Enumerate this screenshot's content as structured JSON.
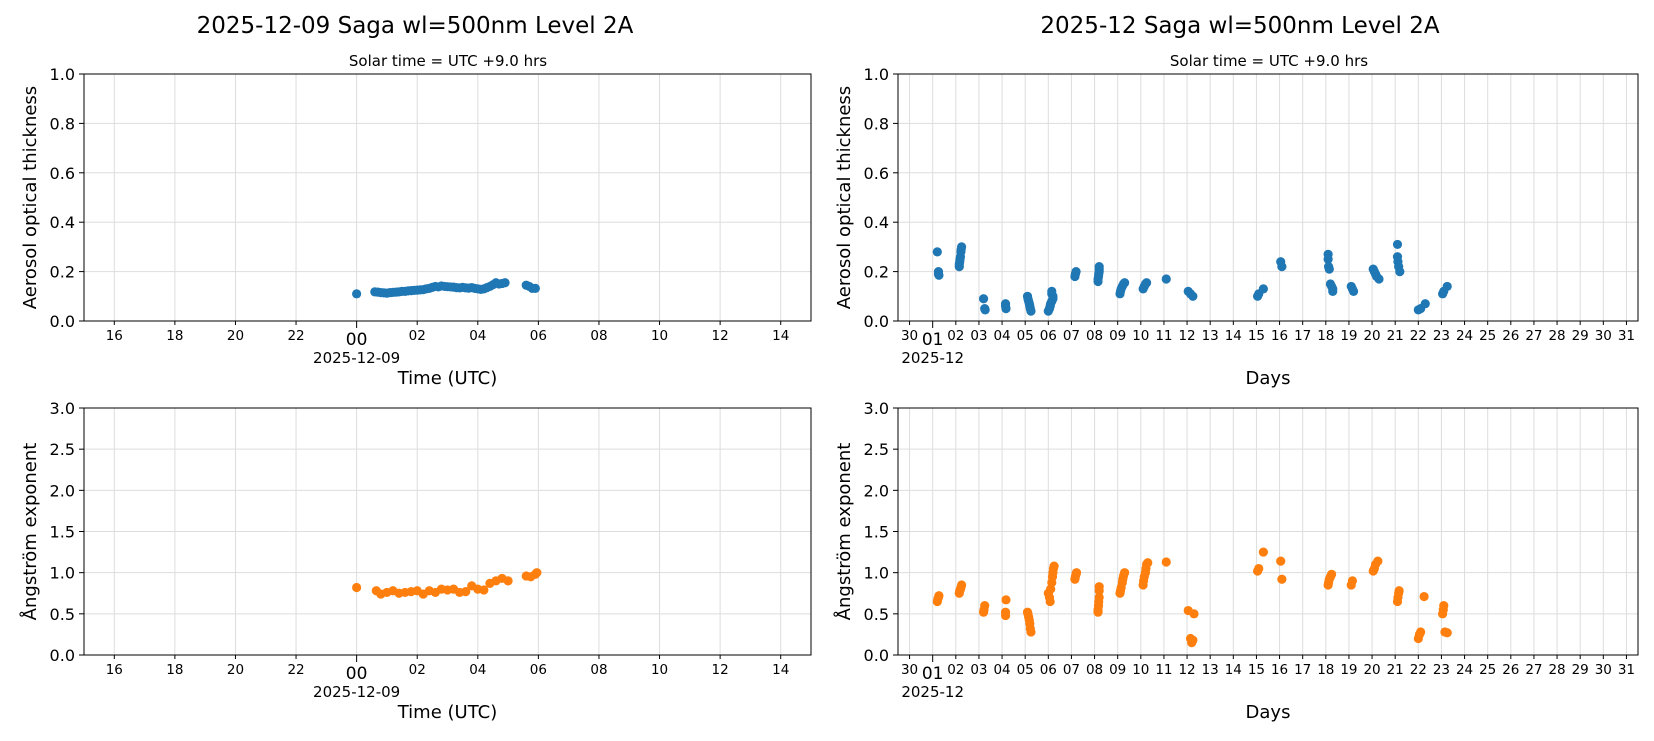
{
  "chart_data": [
    {
      "type": "scatter",
      "title": "2025-12-09  Saga  wl=500nm  Level 2A",
      "subtitle": "Solar time = UTC +9.0 hrs",
      "xlabel": "Time (UTC)",
      "ylabel": "Aerosol optical thickness",
      "x_tick_labels": [
        "16",
        "18",
        "20",
        "22",
        "00",
        "02",
        "04",
        "06",
        "08",
        "10",
        "12",
        "14"
      ],
      "x_major_label": "2025-12-09",
      "xlim": [
        "2025-12-08 15:00",
        "2025-12-09 15:00"
      ],
      "ylim": [
        0,
        1.0
      ],
      "y_ticks": [
        "0.0",
        "0.2",
        "0.4",
        "0.6",
        "0.8",
        "1.0"
      ],
      "grid": true,
      "color": "#1f77b4",
      "points": [
        [
          "00:00",
          0.11
        ],
        [
          "00:36",
          0.118
        ],
        [
          "00:42",
          0.117
        ],
        [
          "00:48",
          0.115
        ],
        [
          "00:54",
          0.114
        ],
        [
          "01:00",
          0.113
        ],
        [
          "01:06",
          0.115
        ],
        [
          "01:12",
          0.116
        ],
        [
          "01:18",
          0.117
        ],
        [
          "01:24",
          0.118
        ],
        [
          "01:30",
          0.12
        ],
        [
          "01:36",
          0.12
        ],
        [
          "01:42",
          0.122
        ],
        [
          "01:48",
          0.123
        ],
        [
          "01:54",
          0.124
        ],
        [
          "02:00",
          0.125
        ],
        [
          "02:06",
          0.126
        ],
        [
          "02:12",
          0.127
        ],
        [
          "02:18",
          0.13
        ],
        [
          "02:24",
          0.132
        ],
        [
          "02:30",
          0.136
        ],
        [
          "02:36",
          0.14
        ],
        [
          "02:42",
          0.138
        ],
        [
          "02:48",
          0.142
        ],
        [
          "02:54",
          0.14
        ],
        [
          "03:00",
          0.139
        ],
        [
          "03:06",
          0.138
        ],
        [
          "03:12",
          0.137
        ],
        [
          "03:18",
          0.135
        ],
        [
          "03:24",
          0.134
        ],
        [
          "03:30",
          0.136
        ],
        [
          "03:36",
          0.134
        ],
        [
          "03:42",
          0.133
        ],
        [
          "03:48",
          0.135
        ],
        [
          "03:54",
          0.132
        ],
        [
          "04:00",
          0.13
        ],
        [
          "04:06",
          0.128
        ],
        [
          "04:12",
          0.13
        ],
        [
          "04:18",
          0.135
        ],
        [
          "04:24",
          0.14
        ],
        [
          "04:30",
          0.147
        ],
        [
          "04:36",
          0.155
        ],
        [
          "04:42",
          0.15
        ],
        [
          "04:48",
          0.152
        ],
        [
          "04:54",
          0.155
        ],
        [
          "05:36",
          0.145
        ],
        [
          "05:42",
          0.14
        ],
        [
          "05:48",
          0.132
        ],
        [
          "05:54",
          0.132
        ]
      ]
    },
    {
      "type": "scatter",
      "title": "2025-12  Saga  wl=500nm  Level 2A",
      "subtitle": "Solar time = UTC +9.0 hrs",
      "xlabel": "Days",
      "ylabel": "Aerosol optical thickness",
      "x_tick_labels": [
        "30",
        "01",
        "02",
        "03",
        "04",
        "05",
        "06",
        "07",
        "08",
        "09",
        "10",
        "11",
        "12",
        "13",
        "14",
        "15",
        "16",
        "17",
        "18",
        "19",
        "20",
        "21",
        "22",
        "23",
        "24",
        "25",
        "26",
        "27",
        "28",
        "29",
        "30",
        "31"
      ],
      "x_major_label": "2025-12",
      "ylim": [
        0,
        1.0
      ],
      "y_ticks": [
        "0.0",
        "0.2",
        "0.4",
        "0.6",
        "0.8",
        "1.0"
      ],
      "grid": true,
      "color": "#1f77b4",
      "points": [
        [
          1.2,
          0.28
        ],
        [
          1.25,
          0.2
        ],
        [
          1.25,
          0.19
        ],
        [
          1.27,
          0.185
        ],
        [
          2.15,
          0.22
        ],
        [
          2.15,
          0.23
        ],
        [
          2.17,
          0.24
        ],
        [
          2.18,
          0.25
        ],
        [
          2.2,
          0.26
        ],
        [
          2.22,
          0.28
        ],
        [
          2.23,
          0.29
        ],
        [
          2.25,
          0.3
        ],
        [
          3.2,
          0.09
        ],
        [
          3.25,
          0.05
        ],
        [
          3.27,
          0.045
        ],
        [
          4.15,
          0.07
        ],
        [
          4.15,
          0.06
        ],
        [
          4.17,
          0.05
        ],
        [
          5.1,
          0.1
        ],
        [
          5.12,
          0.09
        ],
        [
          5.15,
          0.08
        ],
        [
          5.18,
          0.07
        ],
        [
          5.2,
          0.06
        ],
        [
          5.22,
          0.05
        ],
        [
          5.25,
          0.04
        ],
        [
          6.0,
          0.04
        ],
        [
          6.05,
          0.05
        ],
        [
          6.08,
          0.06
        ],
        [
          6.1,
          0.07
        ],
        [
          6.15,
          0.08
        ],
        [
          6.2,
          0.09
        ],
        [
          6.2,
          0.1
        ],
        [
          6.15,
          0.11
        ],
        [
          6.15,
          0.12
        ],
        [
          7.15,
          0.18
        ],
        [
          7.17,
          0.19
        ],
        [
          7.2,
          0.2
        ],
        [
          8.15,
          0.16
        ],
        [
          8.15,
          0.17
        ],
        [
          8.17,
          0.18
        ],
        [
          8.18,
          0.19
        ],
        [
          8.2,
          0.2
        ],
        [
          8.2,
          0.21
        ],
        [
          8.2,
          0.22
        ],
        [
          9.1,
          0.11
        ],
        [
          9.12,
          0.12
        ],
        [
          9.15,
          0.13
        ],
        [
          9.2,
          0.14
        ],
        [
          9.25,
          0.15
        ],
        [
          9.3,
          0.155
        ],
        [
          10.1,
          0.13
        ],
        [
          10.15,
          0.14
        ],
        [
          10.2,
          0.15
        ],
        [
          10.25,
          0.155
        ],
        [
          11.1,
          0.17
        ],
        [
          12.05,
          0.12
        ],
        [
          12.15,
          0.11
        ],
        [
          12.25,
          0.1
        ],
        [
          15.05,
          0.1
        ],
        [
          15.1,
          0.11
        ],
        [
          15.3,
          0.13
        ],
        [
          16.05,
          0.24
        ],
        [
          16.1,
          0.22
        ],
        [
          18.1,
          0.27
        ],
        [
          18.1,
          0.25
        ],
        [
          18.12,
          0.22
        ],
        [
          18.15,
          0.21
        ],
        [
          18.2,
          0.15
        ],
        [
          18.25,
          0.14
        ],
        [
          18.3,
          0.13
        ],
        [
          18.3,
          0.12
        ],
        [
          19.1,
          0.14
        ],
        [
          19.15,
          0.13
        ],
        [
          19.2,
          0.12
        ],
        [
          20.05,
          0.21
        ],
        [
          20.1,
          0.2
        ],
        [
          20.15,
          0.19
        ],
        [
          20.2,
          0.18
        ],
        [
          20.3,
          0.17
        ],
        [
          21.1,
          0.31
        ],
        [
          21.1,
          0.26
        ],
        [
          21.12,
          0.24
        ],
        [
          21.15,
          0.22
        ],
        [
          21.2,
          0.2
        ],
        [
          22.0,
          0.045
        ],
        [
          22.1,
          0.05
        ],
        [
          22.3,
          0.07
        ],
        [
          23.05,
          0.11
        ],
        [
          23.1,
          0.12
        ],
        [
          23.25,
          0.14
        ]
      ]
    },
    {
      "type": "scatter",
      "xlabel": "Time (UTC)",
      "ylabel": "Ångström exponent",
      "x_tick_labels": [
        "16",
        "18",
        "20",
        "22",
        "00",
        "02",
        "04",
        "06",
        "08",
        "10",
        "12",
        "14"
      ],
      "x_major_label": "2025-12-09",
      "xlim": [
        "2025-12-08 15:00",
        "2025-12-09 15:00"
      ],
      "ylim": [
        0,
        3.0
      ],
      "y_ticks": [
        "0.0",
        "0.5",
        "1.0",
        "1.5",
        "2.0",
        "2.5",
        "3.0"
      ],
      "grid": true,
      "color": "#ff7f0e",
      "points": [
        [
          "00:00",
          0.82
        ],
        [
          "00:39",
          0.78
        ],
        [
          "00:48",
          0.74
        ],
        [
          "01:00",
          0.76
        ],
        [
          "01:12",
          0.78
        ],
        [
          "01:24",
          0.75
        ],
        [
          "01:36",
          0.76
        ],
        [
          "01:48",
          0.77
        ],
        [
          "02:00",
          0.78
        ],
        [
          "02:12",
          0.74
        ],
        [
          "02:24",
          0.78
        ],
        [
          "02:36",
          0.76
        ],
        [
          "02:48",
          0.8
        ],
        [
          "03:00",
          0.79
        ],
        [
          "03:12",
          0.8
        ],
        [
          "03:24",
          0.76
        ],
        [
          "03:36",
          0.77
        ],
        [
          "03:48",
          0.84
        ],
        [
          "04:00",
          0.8
        ],
        [
          "04:12",
          0.79
        ],
        [
          "04:24",
          0.87
        ],
        [
          "04:36",
          0.9
        ],
        [
          "04:48",
          0.93
        ],
        [
          "05:00",
          0.9
        ],
        [
          "05:36",
          0.96
        ],
        [
          "05:45",
          0.95
        ],
        [
          "05:54",
          0.98
        ],
        [
          "05:57",
          1.0
        ]
      ]
    },
    {
      "type": "scatter",
      "xlabel": "Days",
      "ylabel": "Ångström exponent",
      "x_tick_labels": [
        "30",
        "01",
        "02",
        "03",
        "04",
        "05",
        "06",
        "07",
        "08",
        "09",
        "10",
        "11",
        "12",
        "13",
        "14",
        "15",
        "16",
        "17",
        "18",
        "19",
        "20",
        "21",
        "22",
        "23",
        "24",
        "25",
        "26",
        "27",
        "28",
        "29",
        "30",
        "31"
      ],
      "x_major_label": "2025-12",
      "ylim": [
        0,
        3.0
      ],
      "y_ticks": [
        "0.0",
        "0.5",
        "1.0",
        "1.5",
        "2.0",
        "2.5",
        "3.0"
      ],
      "grid": true,
      "color": "#ff7f0e",
      "points": [
        [
          1.2,
          0.65
        ],
        [
          1.22,
          0.68
        ],
        [
          1.25,
          0.7
        ],
        [
          1.27,
          0.72
        ],
        [
          2.15,
          0.75
        ],
        [
          2.17,
          0.78
        ],
        [
          2.2,
          0.8
        ],
        [
          2.22,
          0.82
        ],
        [
          2.25,
          0.85
        ],
        [
          3.2,
          0.52
        ],
        [
          3.22,
          0.55
        ],
        [
          3.25,
          0.6
        ],
        [
          4.15,
          0.48
        ],
        [
          4.15,
          0.52
        ],
        [
          4.17,
          0.67
        ],
        [
          5.1,
          0.52
        ],
        [
          5.12,
          0.5
        ],
        [
          5.15,
          0.46
        ],
        [
          5.18,
          0.42
        ],
        [
          5.2,
          0.38
        ],
        [
          5.22,
          0.32
        ],
        [
          5.25,
          0.28
        ],
        [
          6.0,
          0.75
        ],
        [
          6.05,
          0.7
        ],
        [
          6.08,
          0.65
        ],
        [
          6.1,
          0.8
        ],
        [
          6.15,
          0.88
        ],
        [
          6.18,
          0.95
        ],
        [
          6.2,
          1.0
        ],
        [
          6.22,
          1.05
        ],
        [
          6.25,
          1.08
        ],
        [
          7.15,
          0.92
        ],
        [
          7.17,
          0.95
        ],
        [
          7.2,
          0.98
        ],
        [
          7.22,
          1.0
        ],
        [
          8.15,
          0.52
        ],
        [
          8.15,
          0.55
        ],
        [
          8.17,
          0.6
        ],
        [
          8.18,
          0.65
        ],
        [
          8.2,
          0.7
        ],
        [
          8.2,
          0.78
        ],
        [
          8.2,
          0.83
        ],
        [
          9.1,
          0.75
        ],
        [
          9.12,
          0.78
        ],
        [
          9.15,
          0.82
        ],
        [
          9.2,
          0.88
        ],
        [
          9.22,
          0.92
        ],
        [
          9.25,
          0.96
        ],
        [
          9.3,
          1.0
        ],
        [
          10.1,
          0.85
        ],
        [
          10.12,
          0.9
        ],
        [
          10.15,
          0.95
        ],
        [
          10.2,
          1.0
        ],
        [
          10.22,
          1.05
        ],
        [
          10.25,
          1.1
        ],
        [
          10.3,
          1.12
        ],
        [
          11.1,
          1.13
        ],
        [
          12.05,
          0.54
        ],
        [
          12.3,
          0.5
        ],
        [
          12.15,
          0.2
        ],
        [
          12.2,
          0.15
        ],
        [
          12.25,
          0.18
        ],
        [
          15.05,
          1.02
        ],
        [
          15.1,
          1.05
        ],
        [
          15.3,
          1.25
        ],
        [
          16.05,
          1.14
        ],
        [
          16.1,
          0.92
        ],
        [
          18.1,
          0.85
        ],
        [
          18.12,
          0.88
        ],
        [
          18.15,
          0.92
        ],
        [
          18.2,
          0.95
        ],
        [
          18.25,
          0.98
        ],
        [
          19.1,
          0.85
        ],
        [
          19.15,
          0.9
        ],
        [
          20.05,
          1.02
        ],
        [
          20.1,
          1.05
        ],
        [
          20.15,
          1.1
        ],
        [
          20.25,
          1.14
        ],
        [
          21.1,
          0.65
        ],
        [
          21.12,
          0.7
        ],
        [
          21.15,
          0.75
        ],
        [
          21.17,
          0.78
        ],
        [
          22.0,
          0.2
        ],
        [
          22.05,
          0.25
        ],
        [
          22.1,
          0.28
        ],
        [
          22.25,
          0.71
        ],
        [
          23.05,
          0.5
        ],
        [
          23.08,
          0.55
        ],
        [
          23.1,
          0.6
        ],
        [
          23.15,
          0.28
        ],
        [
          23.25,
          0.27
        ]
      ]
    }
  ]
}
